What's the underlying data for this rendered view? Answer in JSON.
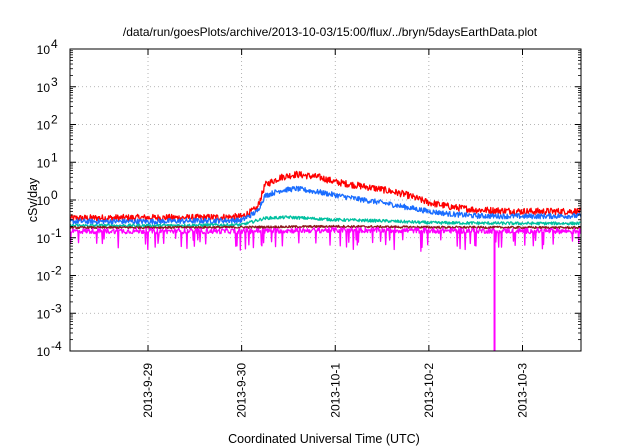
{
  "chart_data": {
    "type": "line",
    "title": "/data/run/goesPlots/archive/2013-10-03/15:00/flux/../bryn/5daysEarthData.plot",
    "xlabel": "Coordinated Universal Time (UTC)",
    "ylabel": "cSv/day",
    "yscale": "log",
    "ylim": [
      0.0001,
      10000
    ],
    "xlim": [
      "2013-09-28T04:00",
      "2013-10-03T15:00"
    ],
    "grid": true,
    "legend": "none",
    "y_ticks": [
      {
        "value": 10000,
        "base": "10",
        "exp": "4"
      },
      {
        "value": 1000,
        "base": "10",
        "exp": "3"
      },
      {
        "value": 100,
        "base": "10",
        "exp": "2"
      },
      {
        "value": 10,
        "base": "10",
        "exp": "1"
      },
      {
        "value": 1,
        "base": "10",
        "exp": "0"
      },
      {
        "value": 0.1,
        "base": "10",
        "exp": "-1"
      },
      {
        "value": 0.01,
        "base": "10",
        "exp": "-2"
      },
      {
        "value": 0.001,
        "base": "10",
        "exp": "-3"
      },
      {
        "value": 0.0001,
        "base": "10",
        "exp": "-4"
      }
    ],
    "x_ticks": [
      {
        "x": "2013-09-29T00:00",
        "label": "2013-9-29"
      },
      {
        "x": "2013-09-30T00:00",
        "label": "2013-9-30"
      },
      {
        "x": "2013-10-01T00:00",
        "label": "2013-10-1"
      },
      {
        "x": "2013-10-02T00:00",
        "label": "2013-10-2"
      },
      {
        "x": "2013-10-03T00:00",
        "label": "2013-10-3"
      }
    ],
    "series": [
      {
        "color": "#ff0000",
        "noise": 0.09,
        "points": [
          [
            "2013-09-28T04:00",
            0.33
          ],
          [
            "2013-09-29T00:00",
            0.34
          ],
          [
            "2013-09-29T12:00",
            0.34
          ],
          [
            "2013-09-30T00:00",
            0.36
          ],
          [
            "2013-09-30T04:00",
            0.6
          ],
          [
            "2013-09-30T06:00",
            2.5
          ],
          [
            "2013-09-30T10:00",
            4.0
          ],
          [
            "2013-09-30T14:00",
            4.8
          ],
          [
            "2013-09-30T20:00",
            4.0
          ],
          [
            "2013-10-01T00:00",
            3.0
          ],
          [
            "2013-10-01T06:00",
            2.4
          ],
          [
            "2013-10-01T12:00",
            1.9
          ],
          [
            "2013-10-01T18:00",
            1.4
          ],
          [
            "2013-10-02T00:00",
            0.85
          ],
          [
            "2013-10-02T06:00",
            0.65
          ],
          [
            "2013-10-02T12:00",
            0.55
          ],
          [
            "2013-10-03T00:00",
            0.5
          ],
          [
            "2013-10-03T15:00",
            0.5
          ]
        ]
      },
      {
        "color": "#1a6dff",
        "noise": 0.07,
        "points": [
          [
            "2013-09-28T04:00",
            0.27
          ],
          [
            "2013-09-29T00:00",
            0.27
          ],
          [
            "2013-09-29T12:00",
            0.28
          ],
          [
            "2013-09-30T00:00",
            0.29
          ],
          [
            "2013-09-30T04:00",
            0.5
          ],
          [
            "2013-09-30T06:00",
            1.3
          ],
          [
            "2013-09-30T10:00",
            1.8
          ],
          [
            "2013-09-30T14:00",
            2.0
          ],
          [
            "2013-09-30T20:00",
            1.6
          ],
          [
            "2013-10-01T00:00",
            1.35
          ],
          [
            "2013-10-01T06:00",
            1.05
          ],
          [
            "2013-10-01T12:00",
            0.85
          ],
          [
            "2013-10-01T18:00",
            0.65
          ],
          [
            "2013-10-02T00:00",
            0.5
          ],
          [
            "2013-10-02T06:00",
            0.42
          ],
          [
            "2013-10-02T12:00",
            0.38
          ],
          [
            "2013-10-03T00:00",
            0.37
          ],
          [
            "2013-10-03T15:00",
            0.38
          ]
        ]
      },
      {
        "color": "#00c0a0",
        "noise": 0.04,
        "points": [
          [
            "2013-09-28T04:00",
            0.21
          ],
          [
            "2013-09-29T00:00",
            0.21
          ],
          [
            "2013-09-30T00:00",
            0.22
          ],
          [
            "2013-09-30T06:00",
            0.33
          ],
          [
            "2013-09-30T12:00",
            0.35
          ],
          [
            "2013-10-01T00:00",
            0.3
          ],
          [
            "2013-10-01T12:00",
            0.28
          ],
          [
            "2013-10-02T00:00",
            0.25
          ],
          [
            "2013-10-03T00:00",
            0.24
          ],
          [
            "2013-10-03T15:00",
            0.24
          ]
        ]
      },
      {
        "color": "#8b1a1a",
        "noise": 0.03,
        "points": [
          [
            "2013-09-28T04:00",
            0.185
          ],
          [
            "2013-09-30T00:00",
            0.19
          ],
          [
            "2013-10-01T00:00",
            0.2
          ],
          [
            "2013-10-02T00:00",
            0.19
          ],
          [
            "2013-10-03T15:00",
            0.185
          ]
        ]
      },
      {
        "color": "#ff00ff",
        "noise": 0.07,
        "dip_probability": 0.06,
        "points": [
          [
            "2013-09-28T04:00",
            0.15
          ],
          [
            "2013-09-30T00:00",
            0.15
          ],
          [
            "2013-10-01T00:00",
            0.16
          ],
          [
            "2013-10-02T00:00",
            0.155
          ],
          [
            "2013-10-03T15:00",
            0.15
          ]
        ],
        "spikes": [
          {
            "x": "2013-10-02T16:50",
            "y": 0.0001
          }
        ]
      }
    ]
  }
}
